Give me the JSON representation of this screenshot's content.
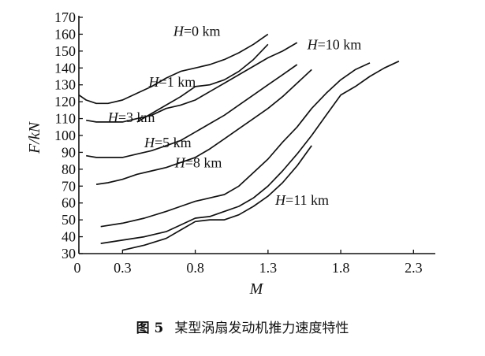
{
  "chart_data": {
    "type": "line",
    "xlabel": "M",
    "ylabel": "F/kN",
    "xlim": [
      0,
      2.45
    ],
    "ylim": [
      30,
      170
    ],
    "x_ticks": [
      "0",
      "0.3",
      "0.8",
      "1.3",
      "1.8",
      "2.3"
    ],
    "x_tick_values": [
      0,
      0.3,
      0.8,
      1.3,
      1.8,
      2.3
    ],
    "y_ticks": [
      30,
      40,
      50,
      60,
      70,
      80,
      90,
      100,
      110,
      120,
      130,
      140,
      150,
      160,
      170
    ],
    "grid": false,
    "series": [
      {
        "name": "H=0 km",
        "label_var": "H",
        "label_rest": "=0 km",
        "label_at": [
          0.65,
          159
        ],
        "x": [
          0,
          0.05,
          0.12,
          0.2,
          0.3,
          0.4,
          0.5,
          0.6,
          0.7,
          0.8,
          0.9,
          1.0,
          1.1,
          1.2,
          1.3
        ],
        "y": [
          124,
          121,
          119,
          119,
          121,
          125,
          129,
          134,
          138,
          140,
          142,
          145,
          149,
          154,
          160
        ]
      },
      {
        "name": "H=1 km",
        "label_var": "H",
        "label_rest": "=1 km",
        "label_at": [
          0.48,
          129
        ],
        "x": [
          0.4,
          0.5,
          0.6,
          0.7,
          0.8,
          0.9,
          1.0,
          1.1,
          1.2,
          1.3
        ],
        "y": [
          108,
          113,
          118,
          123,
          129,
          130,
          133,
          138,
          145,
          154
        ]
      },
      {
        "name": "H=3 km",
        "label_var": "H",
        "label_rest": "=3 km",
        "label_at": [
          0.2,
          108
        ],
        "x": [
          0.05,
          0.12,
          0.2,
          0.3,
          0.4,
          0.5,
          0.6,
          0.7,
          0.8,
          0.9,
          1.0,
          1.1,
          1.2,
          1.3,
          1.4,
          1.5
        ],
        "y": [
          109,
          108,
          108,
          108,
          110,
          112,
          116,
          118,
          121,
          126,
          131,
          136,
          141,
          146,
          150,
          155
        ]
      },
      {
        "name": "H=5 km",
        "label_var": "H",
        "label_rest": "=5 km",
        "label_at": [
          0.45,
          93
        ],
        "x": [
          0.05,
          0.12,
          0.2,
          0.3,
          0.4,
          0.5,
          0.6,
          0.7,
          0.8,
          0.9,
          1.0,
          1.1,
          1.2,
          1.3,
          1.4,
          1.5
        ],
        "y": [
          88,
          87,
          87,
          87,
          89,
          91,
          94,
          97,
          102,
          107,
          112,
          118,
          124,
          130,
          136,
          142
        ]
      },
      {
        "name": "H=8 km",
        "label_var": "H",
        "label_rest": "=8 km",
        "label_at": [
          0.66,
          81
        ],
        "x": [
          0.12,
          0.2,
          0.3,
          0.4,
          0.5,
          0.6,
          0.7,
          0.8,
          0.9,
          1.0,
          1.1,
          1.2,
          1.3,
          1.4,
          1.5,
          1.6
        ],
        "y": [
          71,
          72,
          74,
          77,
          79,
          81,
          84,
          87,
          92,
          98,
          104,
          110,
          116,
          123,
          131,
          139
        ]
      },
      {
        "name": "H=10 km",
        "label_var": "H",
        "label_rest": "=10 km",
        "label_at": [
          1.57,
          151
        ],
        "x": [
          0.15,
          0.3,
          0.45,
          0.6,
          0.7,
          0.8,
          0.9,
          1.0,
          1.1,
          1.2,
          1.3,
          1.4,
          1.5,
          1.6,
          1.7,
          1.8,
          1.9,
          2.0
        ],
        "y": [
          46,
          48,
          51,
          55,
          58,
          61,
          63,
          65,
          70,
          78,
          86,
          96,
          105,
          116,
          125,
          133,
          139,
          143
        ]
      },
      {
        "name": "H=11 km",
        "label_var": "H",
        "label_rest": "=11 km",
        "label_at": [
          1.35,
          59
        ],
        "x": [
          0.15,
          0.3,
          0.45,
          0.6,
          0.7,
          0.8,
          0.9,
          1.0,
          1.1,
          1.2,
          1.3,
          1.4,
          1.5,
          1.6,
          1.7,
          1.8,
          1.9,
          2.0,
          2.1,
          2.2
        ],
        "y": [
          36,
          38,
          40,
          43,
          47,
          51,
          52,
          55,
          58,
          63,
          70,
          79,
          89,
          100,
          112,
          124,
          129,
          135,
          140,
          144
        ]
      },
      {
        "name": "",
        "label_var": "",
        "label_rest": "",
        "label_at": null,
        "x": [
          0.3,
          0.45,
          0.6,
          0.7,
          0.8,
          0.9,
          1.0,
          1.1,
          1.2,
          1.3,
          1.4,
          1.5,
          1.6
        ],
        "y": [
          32,
          35,
          39,
          44,
          49,
          50,
          50,
          53,
          58,
          64,
          72,
          82,
          94
        ]
      }
    ]
  },
  "caption": {
    "figure": "图 5",
    "text": "某型涡扇发动机推力速度特性"
  }
}
